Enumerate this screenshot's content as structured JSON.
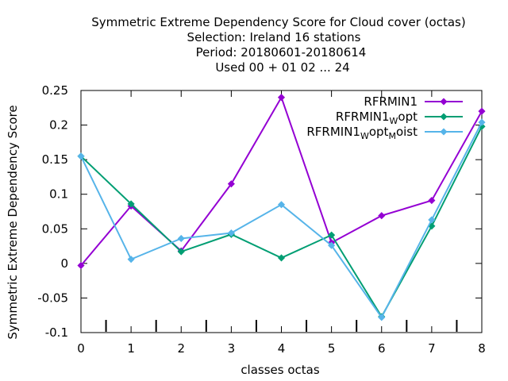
{
  "chart_data": {
    "type": "line",
    "title_lines": [
      "Symmetric Extreme Dependency Score  for Cloud cover (octas)",
      "Selection: Ireland      16 stations",
      "Period: 20180601-20180614",
      "Used  00 + 01 02 ... 24"
    ],
    "xlabel": "classes octas",
    "ylabel": "Symmetric Extreme Dependency Score",
    "x": [
      0,
      1,
      2,
      3,
      4,
      5,
      6,
      7,
      8
    ],
    "xlim": [
      0,
      8
    ],
    "ylim": [
      -0.1,
      0.25
    ],
    "xticks": [
      "0",
      "1",
      "2",
      "3",
      "4",
      "5",
      "6",
      "7",
      "8"
    ],
    "yticks": [
      "-0.1",
      "-0.05",
      "0",
      "0.05",
      "0.1",
      "0.15",
      "0.2",
      "0.25"
    ],
    "grid": false,
    "legend_position": "top-right",
    "series": [
      {
        "name": "RFRMIN1",
        "legend": {
          "parts": [
            {
              "text": "RFRMIN1",
              "sub": false
            }
          ]
        },
        "color": "#9400d3",
        "values": [
          -0.003,
          0.083,
          0.018,
          0.115,
          0.24,
          0.03,
          0.069,
          0.091,
          0.22
        ]
      },
      {
        "name": "RFRMIN1Wopt",
        "legend": {
          "parts": [
            {
              "text": "RFRMIN1",
              "sub": false
            },
            {
              "text": "W",
              "sub": true
            },
            {
              "text": "opt",
              "sub": false
            }
          ]
        },
        "color": "#009e73",
        "values": [
          0.155,
          0.086,
          0.017,
          0.042,
          0.008,
          0.041,
          -0.077,
          0.054,
          0.198
        ]
      },
      {
        "name": "RFRMIN1WoptMoist",
        "legend": {
          "parts": [
            {
              "text": "RFRMIN1",
              "sub": false
            },
            {
              "text": "W",
              "sub": true
            },
            {
              "text": "opt",
              "sub": false
            },
            {
              "text": "M",
              "sub": true
            },
            {
              "text": "oist",
              "sub": false
            }
          ]
        },
        "color": "#56b4e9",
        "values": [
          0.155,
          0.006,
          0.036,
          0.044,
          0.085,
          0.026,
          -0.078,
          0.063,
          0.204
        ]
      }
    ]
  }
}
